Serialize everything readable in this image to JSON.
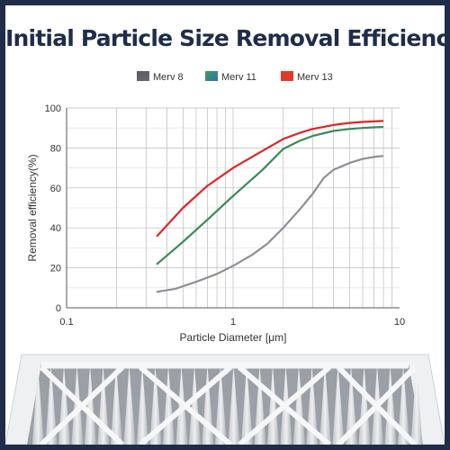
{
  "page": {
    "title": "Initial Particle Size Removal Efficiency"
  },
  "colors": {
    "merv8": "#8e8e98",
    "merv11": "#3a8a55",
    "merv13": "#dd2626",
    "title": "#1f2d4a",
    "border": "#1f2d4a"
  },
  "chart_data": {
    "type": "line",
    "title": "Initial Particle Size Removal Efficiency",
    "xlabel": "Particle Diameter [μm]",
    "ylabel": "Removal efficiency(%)",
    "xscale": "log",
    "xlim": [
      0.1,
      10
    ],
    "ylim": [
      0,
      100
    ],
    "xticks": [
      0.1,
      1,
      10
    ],
    "xtick_labels": [
      "0.1",
      "1",
      "10"
    ],
    "yticks": [
      0,
      20,
      40,
      60,
      80,
      100
    ],
    "ytick_labels": [
      "0",
      "20",
      "40",
      "60",
      "80",
      "100"
    ],
    "grid": true,
    "legend_position": "top-center",
    "series": [
      {
        "name": "Merv 8",
        "legend_swatch": [
          "#5a5a62",
          "#6a6a72"
        ],
        "x": [
          0.35,
          0.45,
          0.6,
          0.8,
          1.0,
          1.3,
          1.6,
          2.0,
          2.5,
          3.0,
          3.5,
          4.0,
          5.0,
          6.0,
          7.0,
          7.9
        ],
        "y": [
          8,
          9.5,
          13,
          17,
          21,
          26.5,
          32,
          40,
          49,
          57,
          65,
          69,
          72.5,
          74.5,
          75.5,
          76
        ]
      },
      {
        "name": "Merv 11",
        "legend_swatch": [
          "#3fa34d",
          "#2f6fbf"
        ],
        "x": [
          0.35,
          0.5,
          0.7,
          1.0,
          1.5,
          2.0,
          2.5,
          3.0,
          4.0,
          5.0,
          6.0,
          7.0,
          7.9
        ],
        "y": [
          22,
          33,
          44,
          56,
          69,
          79.5,
          83.5,
          86,
          88.5,
          89.5,
          90,
          90.3,
          90.5
        ]
      },
      {
        "name": "Merv 13",
        "legend_swatch": [
          "#e23a2a",
          "#e23a2a"
        ],
        "x": [
          0.35,
          0.5,
          0.7,
          1.0,
          1.5,
          2.0,
          2.5,
          3.0,
          4.0,
          5.0,
          6.0,
          7.0,
          7.9
        ],
        "y": [
          36,
          50,
          61,
          70,
          78.5,
          84.5,
          87.5,
          89.5,
          91.5,
          92.5,
          93,
          93.3,
          93.5
        ]
      }
    ]
  }
}
